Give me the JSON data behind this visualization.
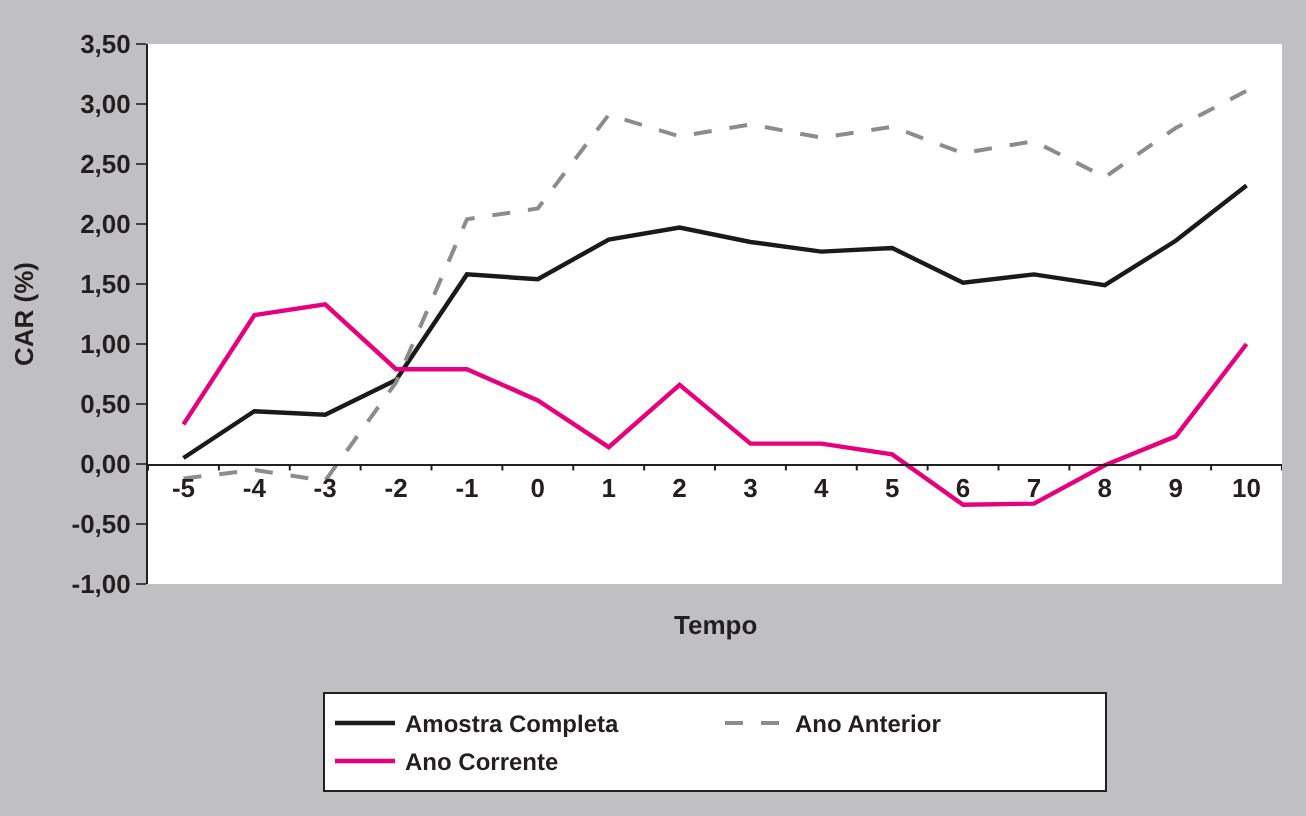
{
  "chart_data": {
    "type": "line",
    "xlabel": "Tempo",
    "ylabel": "CAR (%)",
    "categories": [
      "-5",
      "-4",
      "-3",
      "-2",
      "-1",
      "0",
      "1",
      "2",
      "3",
      "4",
      "5",
      "6",
      "7",
      "8",
      "9",
      "10"
    ],
    "series": [
      {
        "name": "Amostra Completa",
        "color": "#1a1a1a",
        "line_style": "solid",
        "values": [
          0.05,
          0.44,
          0.41,
          0.7,
          1.58,
          1.54,
          1.87,
          1.97,
          1.85,
          1.77,
          1.8,
          1.51,
          1.58,
          1.49,
          1.86,
          2.32
        ]
      },
      {
        "name": "Ano Anterior",
        "color": "#8c8c8c",
        "line_style": "dashed",
        "values": [
          -0.12,
          -0.05,
          -0.14,
          0.68,
          2.04,
          2.13,
          2.91,
          2.73,
          2.83,
          2.72,
          2.81,
          2.59,
          2.69,
          2.39,
          2.8,
          3.11
        ]
      },
      {
        "name": "Ano Corrente",
        "color": "#e6007e",
        "line_style": "solid",
        "values": [
          0.33,
          1.24,
          1.33,
          0.79,
          0.79,
          0.53,
          0.14,
          0.66,
          0.17,
          0.17,
          0.08,
          -0.34,
          -0.33,
          -0.01,
          0.23,
          1.0
        ]
      }
    ],
    "ylim": [
      -1.0,
      3.5
    ],
    "yticks": [
      {
        "value": -1.0,
        "label": "-1,00"
      },
      {
        "value": -0.5,
        "label": "-0,50"
      },
      {
        "value": 0,
        "label": "0,00"
      },
      {
        "value": 0.5,
        "label": "0,50"
      },
      {
        "value": 1.0,
        "label": "1,00"
      },
      {
        "value": 1.5,
        "label": "1,50"
      },
      {
        "value": 2.0,
        "label": "2,00"
      },
      {
        "value": 2.5,
        "label": "2,50"
      },
      {
        "value": 3.0,
        "label": "3,00"
      },
      {
        "value": 3.5,
        "label": "3,50"
      }
    ],
    "legend": "bottom",
    "marker": "none"
  }
}
